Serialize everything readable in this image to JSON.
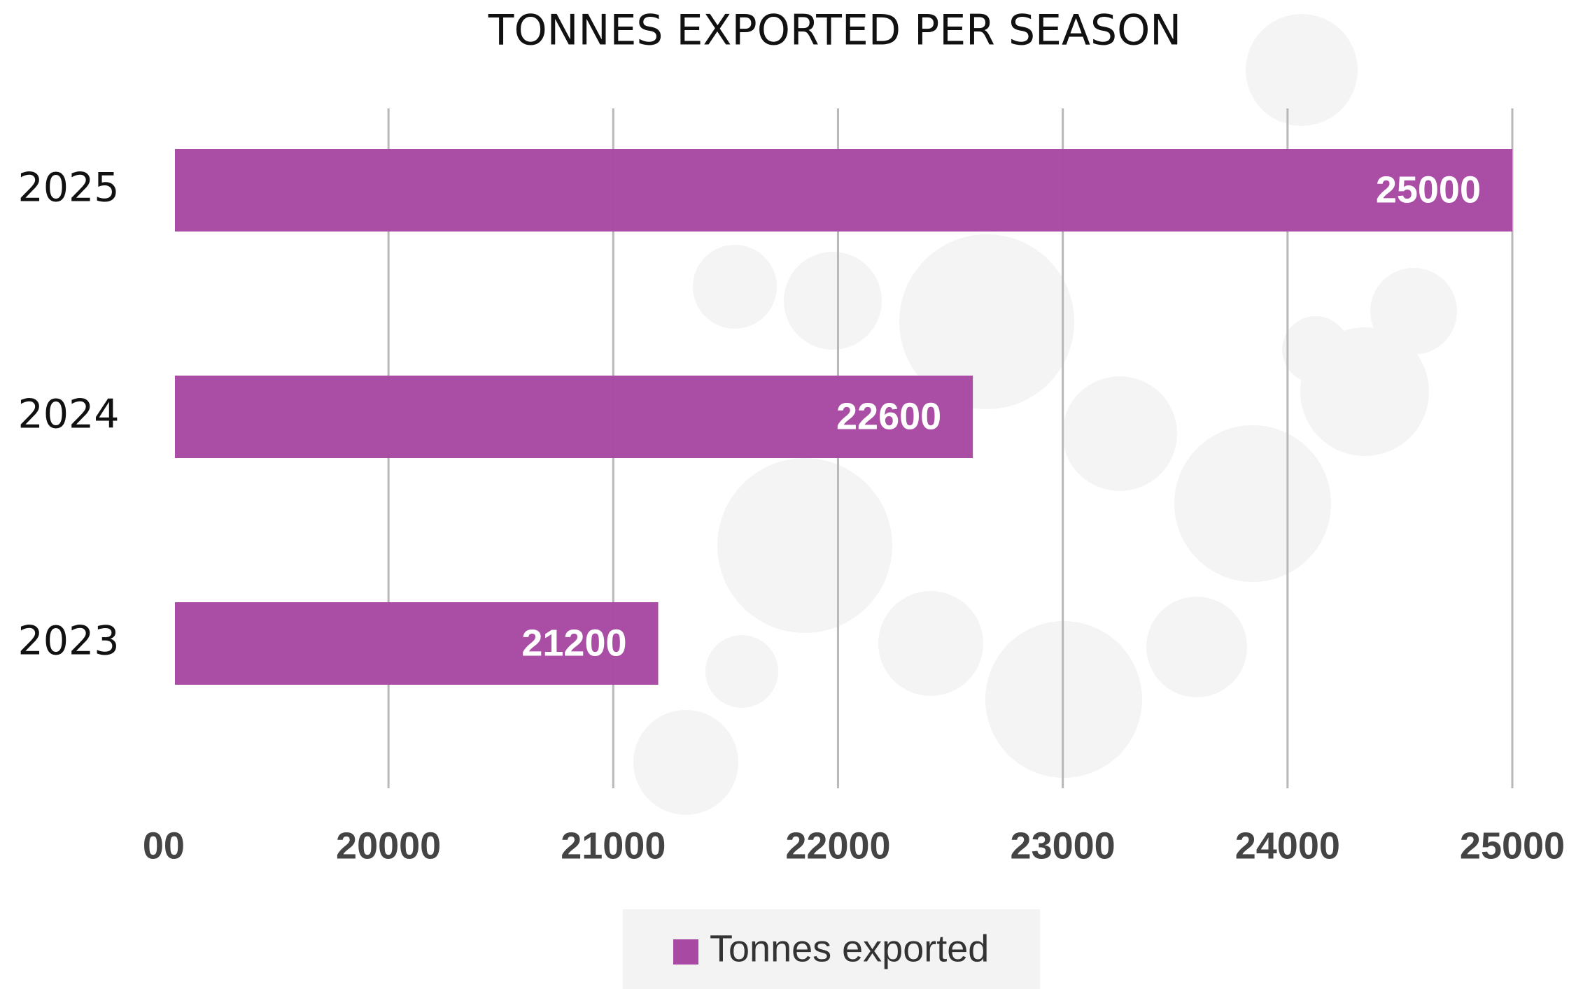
{
  "chart_data": {
    "type": "bar",
    "orientation": "horizontal",
    "title": "TONNES EXPORTED PER SEASON",
    "categories": [
      "2025",
      "2024",
      "2023"
    ],
    "series": [
      {
        "name": "Tonnes exported",
        "color": "#a84aa3",
        "values": [
          25000,
          22600,
          21200
        ]
      }
    ],
    "xlim": [
      19050,
      25000
    ],
    "xticks": [
      {
        "value": 19000,
        "label": "00"
      },
      20000,
      21000,
      22000,
      23000,
      24000,
      25000
    ],
    "grid": true,
    "legend": "bottom"
  }
}
